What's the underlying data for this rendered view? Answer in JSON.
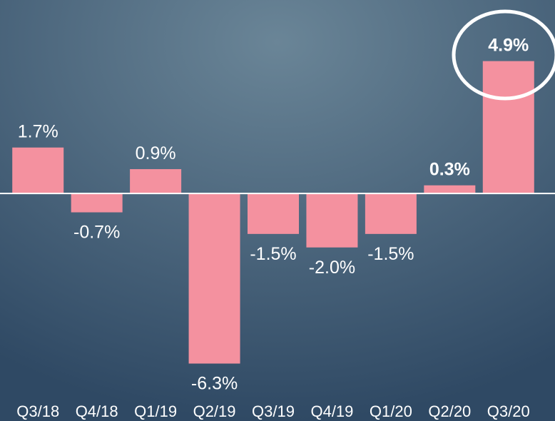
{
  "chart_data": {
    "type": "bar",
    "categories": [
      "Q3/18",
      "Q4/18",
      "Q1/19",
      "Q2/19",
      "Q3/19",
      "Q4/19",
      "Q1/20",
      "Q2/20",
      "Q3/20"
    ],
    "values": [
      1.7,
      -0.7,
      0.9,
      -6.3,
      -1.5,
      -2.0,
      -1.5,
      0.3,
      4.9
    ],
    "value_labels": [
      "1.7%",
      "-0.7%",
      "0.9%",
      "-6.3%",
      "-1.5%",
      "-2.0%",
      "-1.5%",
      "0.3%",
      "4.9%"
    ],
    "color": "#f4919f",
    "ylim": [
      -7,
      6
    ],
    "bold_labels": [
      7,
      8
    ]
  }
}
